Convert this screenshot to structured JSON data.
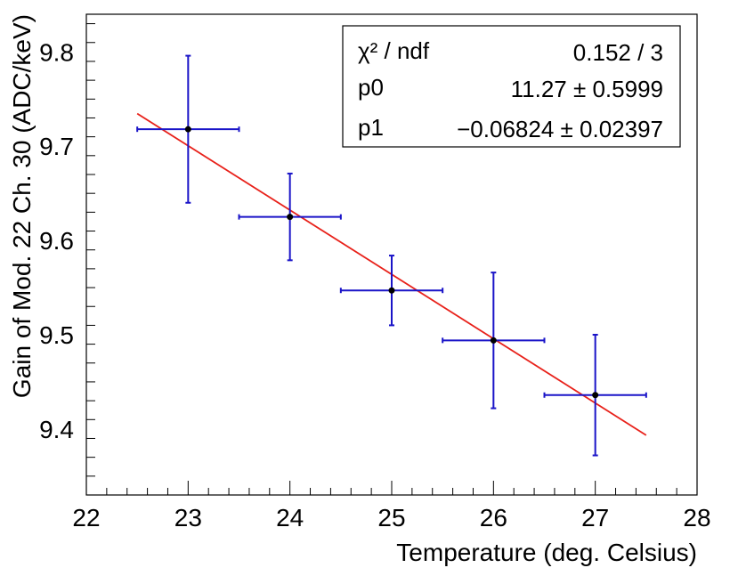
{
  "chart_data": {
    "type": "scatter",
    "xlabel": "Temperature (deg. Celsius)",
    "ylabel": "Gain of Mod. 22 Ch. 30 (ADC/keV)",
    "xlim": [
      22,
      28
    ],
    "ylim": [
      9.33,
      9.84
    ],
    "x_ticks": [
      22,
      23,
      24,
      25,
      26,
      27,
      28
    ],
    "y_ticks": [
      9.4,
      9.5,
      9.6,
      9.7,
      9.8
    ],
    "x_tick_labels": [
      "22",
      "23",
      "24",
      "25",
      "26",
      "27",
      "28"
    ],
    "y_tick_labels": [
      "9.4",
      "9.5",
      "9.6",
      "9.7",
      "9.8"
    ],
    "grid": false,
    "points": [
      {
        "x": 23,
        "y": 9.718,
        "ex": 0.5,
        "ey": 0.078
      },
      {
        "x": 24,
        "y": 9.625,
        "ex": 0.5,
        "ey": 0.046
      },
      {
        "x": 25,
        "y": 9.547,
        "ex": 0.5,
        "ey": 0.037
      },
      {
        "x": 26,
        "y": 9.494,
        "ex": 0.5,
        "ey": 0.072
      },
      {
        "x": 27,
        "y": 9.436,
        "ex": 0.5,
        "ey": 0.064
      }
    ],
    "fit": {
      "p0": 11.27,
      "p1": -0.06824,
      "x_range": [
        22.5,
        27.5
      ],
      "color": "#e8211a"
    },
    "marker_color": "#000000",
    "errorbar_color": "#1a14c8",
    "stats_box": {
      "position": "top-right",
      "rows": [
        {
          "label": "χ² / ndf",
          "value": "0.152 / 3"
        },
        {
          "label": "p0",
          "value": "11.27 ± 0.5999"
        },
        {
          "label": "p1",
          "value": "−0.06824 ± 0.02397"
        }
      ]
    }
  }
}
